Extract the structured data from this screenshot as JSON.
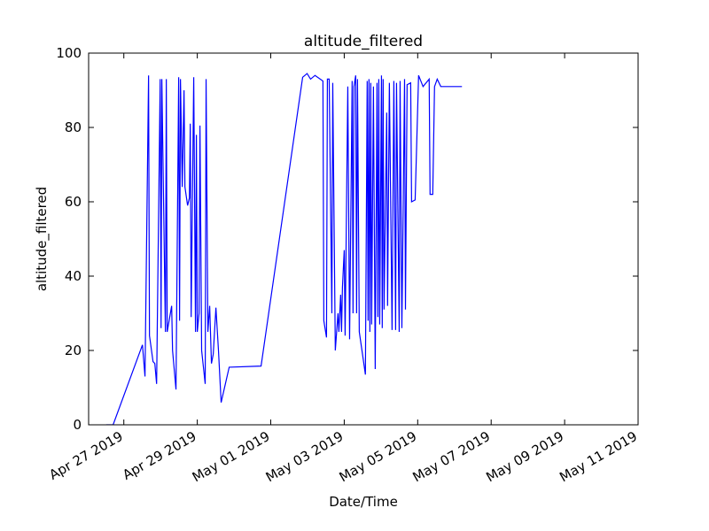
{
  "chart_data": {
    "type": "line",
    "title": "altitude_filtered",
    "xlabel": "Date/Time",
    "ylabel": "altitude_filtered",
    "xlim": [
      "2019-04-26T01:00",
      "2019-05-11T00:00"
    ],
    "ylim": [
      0,
      100
    ],
    "yticks": [
      0,
      20,
      40,
      60,
      80,
      100
    ],
    "xticks": [
      {
        "value": "2019-04-27T00:00",
        "label": "Apr 27 2019"
      },
      {
        "value": "2019-04-29T00:00",
        "label": "Apr 29 2019"
      },
      {
        "value": "2019-05-01T00:00",
        "label": "May 01 2019"
      },
      {
        "value": "2019-05-03T00:00",
        "label": "May 03 2019"
      },
      {
        "value": "2019-05-05T00:00",
        "label": "May 05 2019"
      },
      {
        "value": "2019-05-07T00:00",
        "label": "May 07 2019"
      },
      {
        "value": "2019-05-09T00:00",
        "label": "May 09 2019"
      },
      {
        "value": "2019-05-11T00:00",
        "label": "May 11 2019"
      }
    ],
    "grid": false,
    "series": [
      {
        "color": "#0000ff",
        "x": [
          "2019-04-26T12:30",
          "2019-04-26T17:00",
          "2019-04-27T12:10",
          "2019-04-27T13:50",
          "2019-04-27T16:10",
          "2019-04-27T16:45",
          "2019-04-27T19:05",
          "2019-04-27T20:15",
          "2019-04-27T21:25",
          "2019-04-27T23:45",
          "2019-04-28T00:20",
          "2019-04-28T00:50",
          "2019-04-28T03:10",
          "2019-04-28T03:45",
          "2019-04-28T04:20",
          "2019-04-28T07:15",
          "2019-04-28T07:50",
          "2019-04-28T10:05",
          "2019-04-28T11:50",
          "2019-04-28T12:25",
          "2019-04-28T13:00",
          "2019-04-28T14:10",
          "2019-04-28T15:20",
          "2019-04-28T15:55",
          "2019-04-28T17:40",
          "2019-04-28T18:50",
          "2019-04-28T19:25",
          "2019-04-28T20:00",
          "2019-04-28T21:40",
          "2019-04-28T22:50",
          "2019-04-28T23:25",
          "2019-04-29T00:00",
          "2019-04-29T01:10",
          "2019-04-29T01:45",
          "2019-04-29T02:50",
          "2019-04-29T05:10",
          "2019-04-29T05:45",
          "2019-04-29T06:55",
          "2019-04-29T08:05",
          "2019-04-29T09:15",
          "2019-04-29T10:25",
          "2019-04-29T12:10",
          "2019-04-29T13:50",
          "2019-04-29T15:35",
          "2019-04-29T20:50",
          "2019-04-30T17:40",
          "2019-05-01T20:50",
          "2019-05-01T23:45",
          "2019-05-02T02:00",
          "2019-05-02T04:55",
          "2019-05-02T10:05",
          "2019-05-02T10:40",
          "2019-05-02T12:25",
          "2019-05-02T13:00",
          "2019-05-02T14:10",
          "2019-05-02T15:55",
          "2019-05-02T16:30",
          "2019-05-02T18:10",
          "2019-05-02T19:55",
          "2019-05-02T20:30",
          "2019-05-02T21:40",
          "2019-05-02T22:15",
          "2019-05-02T22:50",
          "2019-05-03T00:00",
          "2019-05-03T00:35",
          "2019-05-03T02:20",
          "2019-05-03T03:30",
          "2019-05-03T05:10",
          "2019-05-03T05:45",
          "2019-05-03T06:20",
          "2019-05-03T07:30",
          "2019-05-03T08:05",
          "2019-05-03T08:40",
          "2019-05-03T09:50",
          "2019-05-03T11:35",
          "2019-05-03T13:50",
          "2019-05-03T15:00",
          "2019-05-03T15:35",
          "2019-05-03T16:10",
          "2019-05-03T16:45",
          "2019-05-03T17:20",
          "2019-05-03T17:55",
          "2019-05-03T19:05",
          "2019-05-03T20:15",
          "2019-05-03T21:25",
          "2019-05-03T22:00",
          "2019-05-03T22:35",
          "2019-05-03T23:10",
          "2019-05-04T00:20",
          "2019-05-04T00:50",
          "2019-05-04T01:25",
          "2019-05-04T02:00",
          "2019-05-04T03:45",
          "2019-05-04T04:20",
          "2019-05-04T05:30",
          "2019-05-04T07:15",
          "2019-05-04T08:25",
          "2019-05-04T09:35",
          "2019-05-04T10:10",
          "2019-05-04T11:55",
          "2019-05-04T12:30",
          "2019-05-04T13:40",
          "2019-05-04T15:25",
          "2019-05-04T16:00",
          "2019-05-04T17:05",
          "2019-05-04T19:25",
          "2019-05-04T20:00",
          "2019-05-04T22:20",
          "2019-05-05T00:35",
          "2019-05-05T03:30",
          "2019-05-05T07:30",
          "2019-05-05T08:05",
          "2019-05-05T09:50",
          "2019-05-05T11:00",
          "2019-05-05T12:45",
          "2019-05-05T15:05",
          "2019-05-06T04:55"
        ],
        "values": [
          0,
          0,
          21.5,
          13,
          94,
          24,
          17,
          16.5,
          11,
          93,
          26,
          93,
          25,
          93,
          25,
          32,
          20,
          9.5,
          93.5,
          28,
          93,
          64,
          90,
          64,
          59,
          61,
          81,
          29,
          93.5,
          25,
          78,
          25,
          30,
          80.5,
          20,
          11,
          93,
          25,
          32,
          16.5,
          19,
          31.5,
          20,
          6,
          15.5,
          15.8,
          93.5,
          94.5,
          93,
          94,
          92.5,
          28,
          23.5,
          93,
          93,
          30,
          92,
          20,
          30,
          25,
          35,
          25,
          37,
          47,
          24,
          91,
          23,
          92.5,
          30,
          91,
          94,
          30,
          93,
          25,
          20,
          13.5,
          92.5,
          28,
          93,
          25,
          92,
          27,
          91,
          15,
          92,
          29,
          93,
          27,
          94,
          26,
          93,
          31,
          84,
          32,
          92,
          25.5,
          92.5,
          25.5,
          92,
          25,
          92.5,
          26,
          93,
          31,
          91.5,
          92,
          60,
          60.5,
          94,
          91,
          93,
          62,
          62,
          91,
          93,
          91,
          91
        ]
      }
    ]
  }
}
